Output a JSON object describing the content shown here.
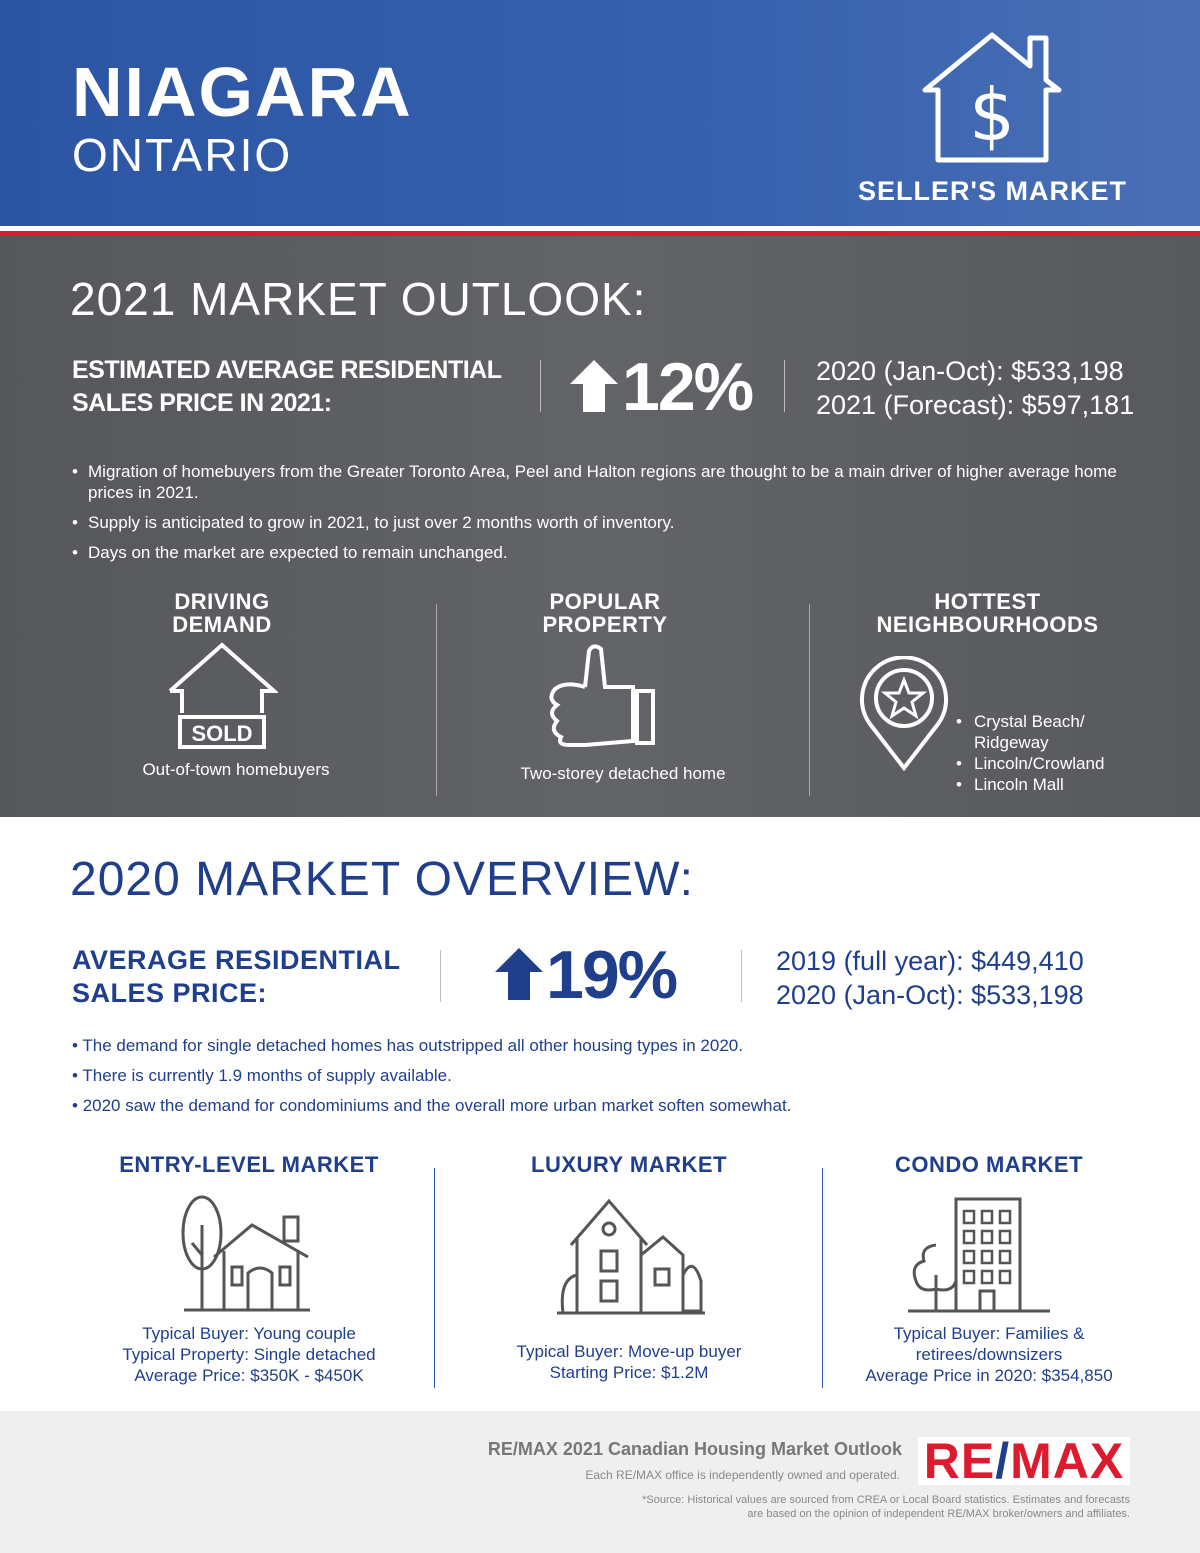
{
  "header": {
    "city": "NIAGARA",
    "province": "ONTARIO",
    "market_type": "SELLER'S MARKET",
    "icon": "house-dollar-icon"
  },
  "outlook": {
    "title": "2021 MARKET OUTLOOK:",
    "label_line1": "ESTIMATED AVERAGE RESIDENTIAL",
    "label_line2": "SALES PRICE IN 2021:",
    "change": "12%",
    "direction": "up",
    "line1_label": "2020 (Jan-Oct): ",
    "line1_value": "$533,198",
    "line2_label": "2021 (Forecast): ",
    "line2_value": "$597,181",
    "bullets": [
      "Migration of homebuyers from the Greater Toronto Area, Peel and Halton regions are thought to be a main driver of higher average home prices in 2021.",
      "Supply is anticipated to grow in 2021, to just over 2 months worth of inventory.",
      "Days on the market are expected to remain unchanged."
    ],
    "columns": [
      {
        "title1": "DRIVING",
        "title2": "DEMAND",
        "sign": "SOLD",
        "caption": "Out-of-town homebuyers"
      },
      {
        "title1": "POPULAR",
        "title2": "PROPERTY",
        "caption": "Two-storey detached home"
      },
      {
        "title1": "HOTTEST",
        "title2": "NEIGHBOURHOODS",
        "items": [
          "Crystal Beach/ Ridgeway",
          "Lincoln/Crowland",
          "Lincoln Mall"
        ]
      }
    ]
  },
  "overview": {
    "title": "2020 MARKET OVERVIEW:",
    "label_line1": "AVERAGE RESIDENTIAL",
    "label_line2": "SALES PRICE:",
    "change": "19%",
    "direction": "up",
    "line1_label": "2019 (full year): ",
    "line1_value": "$449,410",
    "line2_label": "2020 (Jan-Oct): ",
    "line2_value": "$533,198",
    "bullets": [
      "The demand for single detached homes has outstripped all other housing types in 2020.",
      "There is currently 1.9 months of supply available.",
      "2020 saw the demand for condominiums and the overall more urban market soften somewhat."
    ],
    "markets": [
      {
        "title": "ENTRY-LEVEL MARKET",
        "rows": [
          [
            "Typical Buyer",
            ": Young couple"
          ],
          [
            "Typical Property",
            ": Single detached"
          ],
          [
            "Average Price",
            ": $350K - $450K"
          ]
        ]
      },
      {
        "title": "LUXURY MARKET",
        "rows": [
          [
            "Typical Buyer",
            ": Move-up buyer"
          ],
          [
            "Starting Price",
            ": $1.2M"
          ]
        ]
      },
      {
        "title": "CONDO MARKET",
        "rows": [
          [
            "Typical Buyer",
            ": Families &"
          ],
          [
            "",
            "retirees/downsizers"
          ],
          [
            "Average Price in 2020",
            ": $354,850"
          ]
        ]
      }
    ]
  },
  "footer": {
    "title": "RE/MAX 2021 Canadian Housing Market Outlook",
    "note": "Each RE/MAX office is independently owned and operated.",
    "source1": "*Source: Historical values are sourced from CREA or Local Board statistics. Estimates and forecasts",
    "source2": "are based on the opinion of independent RE/MAX broker/owners and affiliates.",
    "logo_text": "RE/MAX",
    "colors": {
      "red": "#dc1c2e",
      "blue": "#1f3f8d"
    }
  }
}
